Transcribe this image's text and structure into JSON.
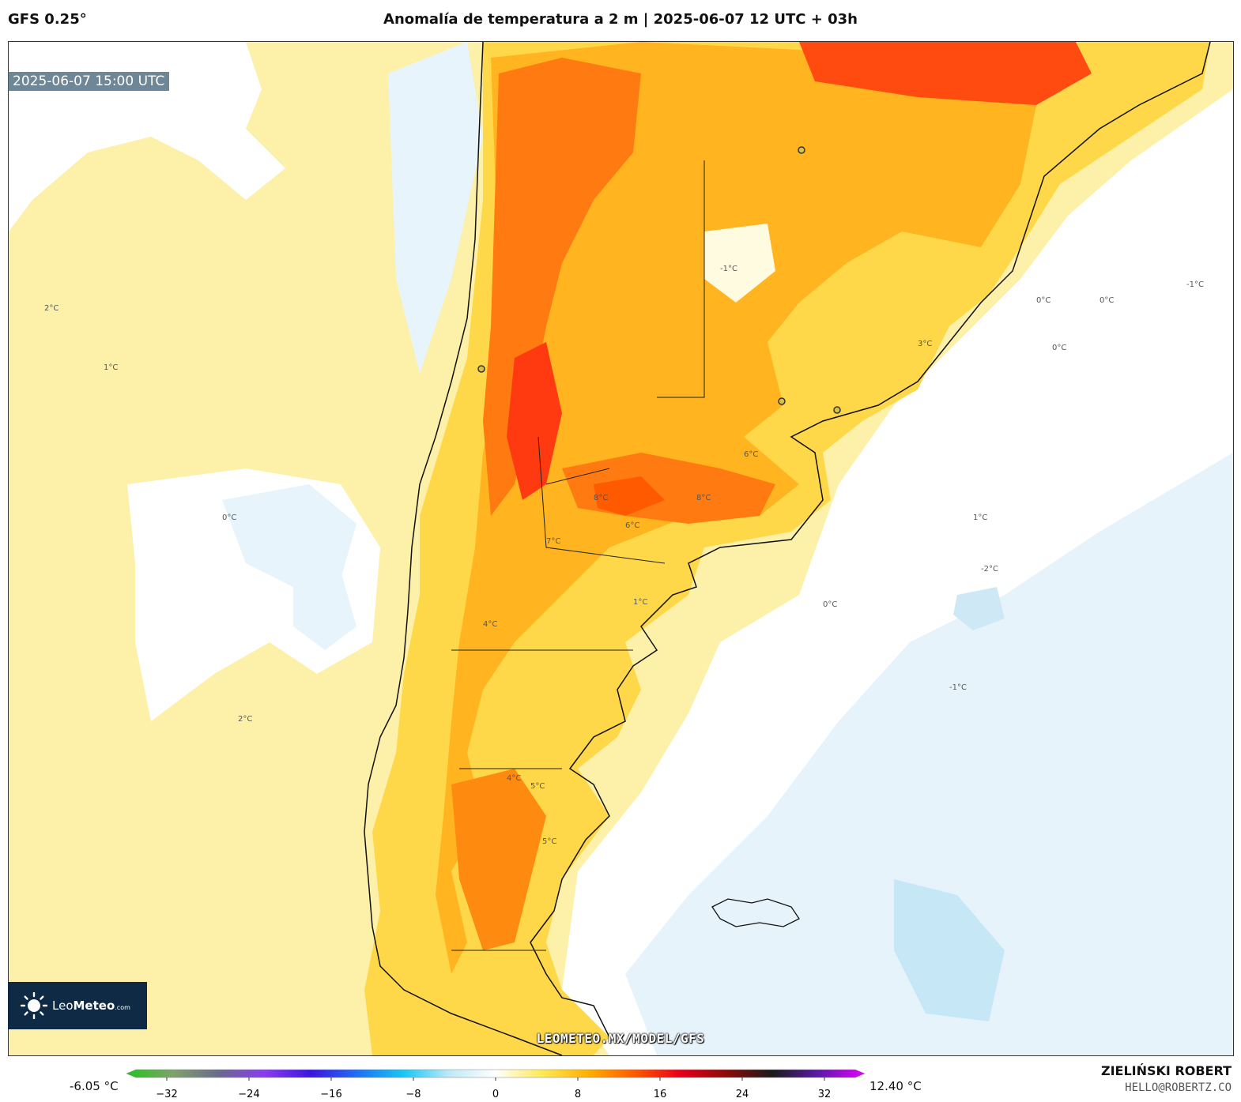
{
  "header": {
    "model": "GFS 0.25°",
    "title": "Anomalía de temperatura a 2 m | 2025-06-07 12 UTC + 03h"
  },
  "map": {
    "valid_time": "2025-06-07 15:00 UTC",
    "contour_labels": [
      "1°C",
      "2°C",
      "0°C",
      "-1°C",
      "-2°C",
      "3°C",
      "4°C",
      "5°C",
      "6°C",
      "7°C",
      "8°C"
    ],
    "watermark": "LEOMETEO.MX/MODEL/GFS"
  },
  "logo": {
    "name": "LeoMeteo",
    "brand_light": "Leo",
    "brand_bold": "Meteo",
    "suffix": ".com"
  },
  "colorbar": {
    "min_label": "-6.05 °C",
    "max_label": "12.40 °C",
    "ticks": [
      "−32",
      "−24",
      "−16",
      "−8",
      "0",
      "8",
      "16",
      "24",
      "32"
    ],
    "tick_values": [
      -32,
      -24,
      -16,
      -8,
      0,
      8,
      16,
      24,
      32
    ],
    "range": [
      -35,
      35
    ],
    "colors": [
      "#22c41e",
      "#7ea36a",
      "#6a6a8e",
      "#8a3cf0",
      "#3c14e0",
      "#1f6ff5",
      "#16c7f5",
      "#bfe9f7",
      "#ffffff",
      "#ffea55",
      "#ffb000",
      "#ff5a00",
      "#e8001a",
      "#8a0a0a",
      "#1a1a1a",
      "#5c1aa8",
      "#e400ff"
    ]
  },
  "credits": {
    "author": "ZIELIŃSKI ROBERT",
    "email": "HELLO@ROBERTZ.CO"
  }
}
